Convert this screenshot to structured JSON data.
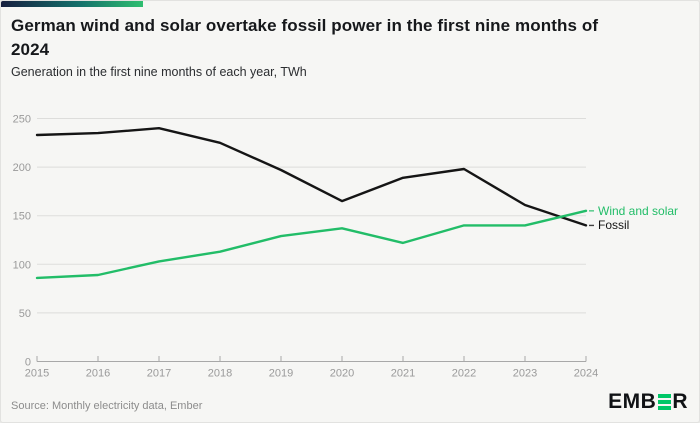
{
  "header": {
    "title_lines": [
      "German wind and solar overtake fossil power in the first nine months of",
      "2024"
    ],
    "subtitle": "Generation in the first nine months of each year, TWh"
  },
  "chart_data": {
    "type": "line",
    "x": [
      2015,
      2016,
      2017,
      2018,
      2019,
      2020,
      2021,
      2022,
      2023,
      2024
    ],
    "series": [
      {
        "name": "Fossil",
        "color": "#151515",
        "values": [
          233,
          235,
          240,
          225,
          197,
          165,
          189,
          198,
          161,
          140
        ]
      },
      {
        "name": "Wind and solar",
        "color": "#22bd68",
        "values": [
          86,
          89,
          103,
          113,
          129,
          137,
          122,
          140,
          140,
          155
        ]
      }
    ],
    "ylim": [
      0,
      250
    ],
    "yticks": [
      0,
      50,
      100,
      150,
      200,
      250
    ],
    "grid": "horizontal",
    "legend_position": "right-end-labels"
  },
  "colors": {
    "background": "#f6f6f4",
    "gridline": "#dddddb",
    "axis": "#a8a8a8",
    "tick_label": "#9a9a9a",
    "accent_green": "#22bd68",
    "line_black": "#151515",
    "logo_green": "#00c767"
  },
  "footer": {
    "source": "Source: Monthly electricity data, Ember",
    "logo_prefix": "EMB",
    "logo_suffix": "R"
  }
}
